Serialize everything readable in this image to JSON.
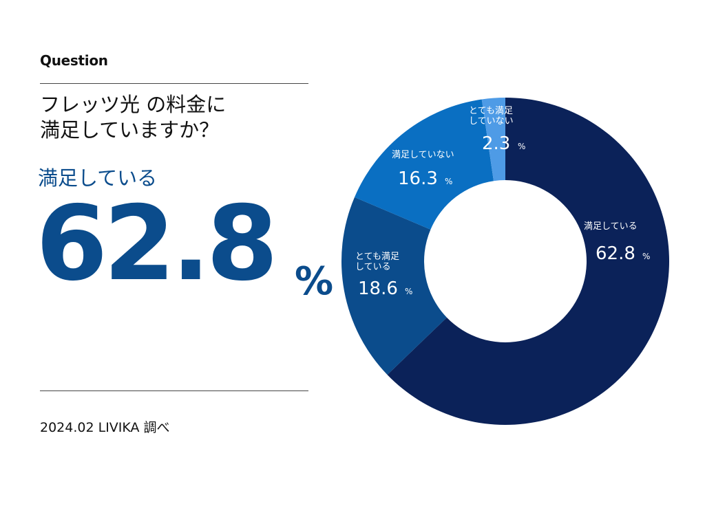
{
  "header": {
    "question_label": "Question",
    "question_line1": "フレッツ光 の料金に",
    "question_line2": "満足していますか？"
  },
  "highlight": {
    "label": "満足している",
    "value": "62.8",
    "unit": "%"
  },
  "footer": {
    "source": "2024.02 LIVIKA 調べ"
  },
  "chart_data": {
    "type": "pie",
    "donut": true,
    "unit": "%",
    "slices": [
      {
        "label": [
          "満足している"
        ],
        "value": 62.8,
        "color": "#0b2259"
      },
      {
        "label": [
          "とても満足",
          "している"
        ],
        "value": 18.6,
        "color": "#0b4c8c"
      },
      {
        "label": [
          "満足していない"
        ],
        "value": 16.3,
        "color": "#0a6fc2"
      },
      {
        "label": [
          "とても満足",
          "していない"
        ],
        "value": 2.3,
        "color": "#4e9be6"
      }
    ]
  }
}
